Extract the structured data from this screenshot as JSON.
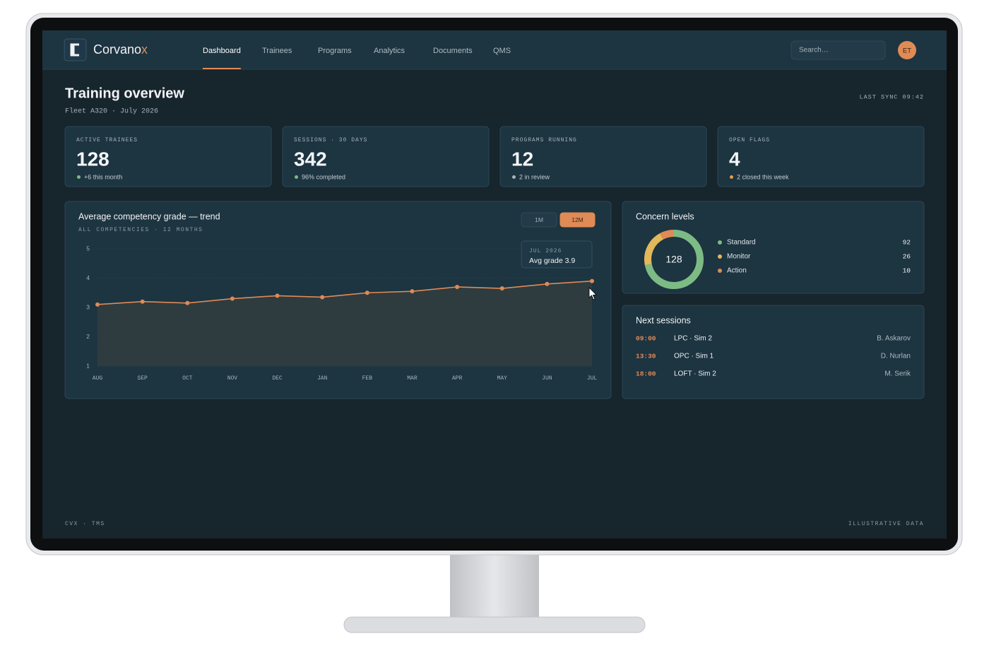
{
  "brand": {
    "name": "Corvano",
    "accent": "x"
  },
  "nav": {
    "items": [
      "Dashboard",
      "Trainees",
      "Programs",
      "Analytics",
      "Documents",
      "QMS"
    ],
    "active": 0
  },
  "search": {
    "placeholder": "Search…"
  },
  "user": {
    "initials": "ET"
  },
  "header": {
    "title": "Training overview",
    "subtitle": "Fleet A320 · July 2026",
    "sync": "LAST SYNC 09:42"
  },
  "kpis": [
    {
      "label": "ACTIVE TRAINEES",
      "value": 128,
      "note": "+6 this month",
      "status_color": "#7dbb85"
    },
    {
      "label": "SESSIONS · 30 DAYS",
      "value": 342,
      "note": "96% completed",
      "status_color": "#7dbb85"
    },
    {
      "label": "PROGRAMS RUNNING",
      "value": 12,
      "note": "2 in review",
      "status_color": "#a9b4ba"
    },
    {
      "label": "OPEN FLAGS",
      "value": 4,
      "note": "2 closed this week",
      "status_color": "#e2a04a"
    }
  ],
  "chart_data": [
    {
      "type": "line",
      "title": "Average competency grade — trend",
      "subtitle": "ALL COMPETENCIES · 12 MONTHS",
      "ranges": [
        "1M",
        "12M"
      ],
      "active_range": 1,
      "tooltip": {
        "title": "JUL 2026",
        "text": "Avg grade 3.9"
      },
      "categories": [
        "AUG",
        "SEP",
        "OCT",
        "NOV",
        "DEC",
        "JAN",
        "FEB",
        "MAR",
        "APR",
        "MAY",
        "JUN",
        "JUL"
      ],
      "values": [
        3.1,
        3.2,
        3.15,
        3.3,
        3.4,
        3.35,
        3.5,
        3.55,
        3.7,
        3.65,
        3.8,
        3.9
      ],
      "color": "#e08a55",
      "area": true,
      "grid": true,
      "ylim": [
        1,
        5
      ],
      "yticks": [
        1,
        2,
        3,
        4,
        5
      ]
    },
    {
      "type": "donut",
      "title": "Concern levels",
      "total": 128,
      "categories": [
        "Standard",
        "Monitor",
        "Action"
      ],
      "values": [
        92,
        26,
        10
      ],
      "colors": [
        "#7dbb85",
        "#e2b85a",
        "#e08a55"
      ]
    }
  ],
  "sessions": {
    "title": "Next sessions",
    "rows": [
      [
        "09:00",
        "LPC · Sim 2",
        "B. Askarov"
      ],
      [
        "13:30",
        "OPC · Sim 1",
        "D. Nurlan"
      ],
      [
        "18:00",
        "LOFT · Sim 2",
        "M. Serik"
      ]
    ]
  },
  "footer": {
    "left": "CVX · TMS",
    "right": "ILLUSTRATIVE DATA"
  }
}
